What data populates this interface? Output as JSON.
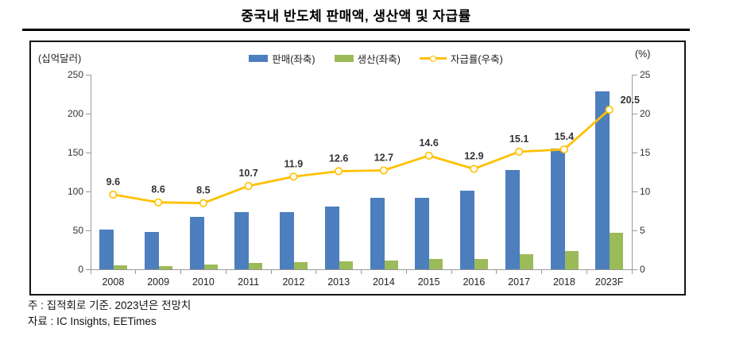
{
  "title": "중국내 반도체 판매액, 생산액 및 자급률",
  "notes": {
    "note": "주 : 집적회로 기준. 2023년은 전망치",
    "source": "자료 : IC Insights, EETimes"
  },
  "colors": {
    "sales_bar": "#4D7EBD",
    "production_bar": "#9BBB59",
    "rate_line": "#FFC000",
    "marker_fill": "#FFFDF0",
    "axis_gray": "#9a9a9a",
    "border_black": "#151515"
  },
  "chart_data": {
    "type": "bar+line",
    "categories": [
      "2008",
      "2009",
      "2010",
      "2011",
      "2012",
      "2013",
      "2014",
      "2015",
      "2016",
      "2017",
      "2018",
      "2023F"
    ],
    "series": [
      {
        "key": "sales",
        "name": "판매(좌축)",
        "type": "bar",
        "axis": "left",
        "color": "#4D7EBD",
        "values": [
          51,
          48,
          67,
          73,
          73,
          81,
          92,
          92,
          101,
          128,
          155,
          229
        ]
      },
      {
        "key": "production",
        "name": "생산(좌축)",
        "type": "bar",
        "axis": "left",
        "color": "#9BBB59",
        "values": [
          4.9,
          4.1,
          5.7,
          7.8,
          8.7,
          10.2,
          11.7,
          13.4,
          13.0,
          19.3,
          23.8,
          47.0
        ]
      },
      {
        "key": "rate",
        "name": "자급률(우축)",
        "type": "line",
        "axis": "right",
        "color": "#FFC000",
        "marker": "circle",
        "data_labels": [
          "9.6",
          "8.6",
          "8.5",
          "10.7",
          "11.9",
          "12.6",
          "12.7",
          "14.6",
          "12.9",
          "15.1",
          "15.4",
          "20.5"
        ],
        "values": [
          9.6,
          8.6,
          8.5,
          10.7,
          11.9,
          12.6,
          12.7,
          14.6,
          12.9,
          15.1,
          15.4,
          20.5
        ]
      }
    ],
    "left_axis": {
      "title": "(십억달러)",
      "range": [
        0,
        250
      ],
      "ticks": [
        0,
        50,
        100,
        150,
        200,
        250
      ]
    },
    "right_axis": {
      "title": "(%)",
      "range": [
        0,
        25
      ],
      "ticks": [
        0,
        5,
        10,
        15,
        20,
        25
      ]
    },
    "grid": false,
    "legend_position": "top-center"
  }
}
